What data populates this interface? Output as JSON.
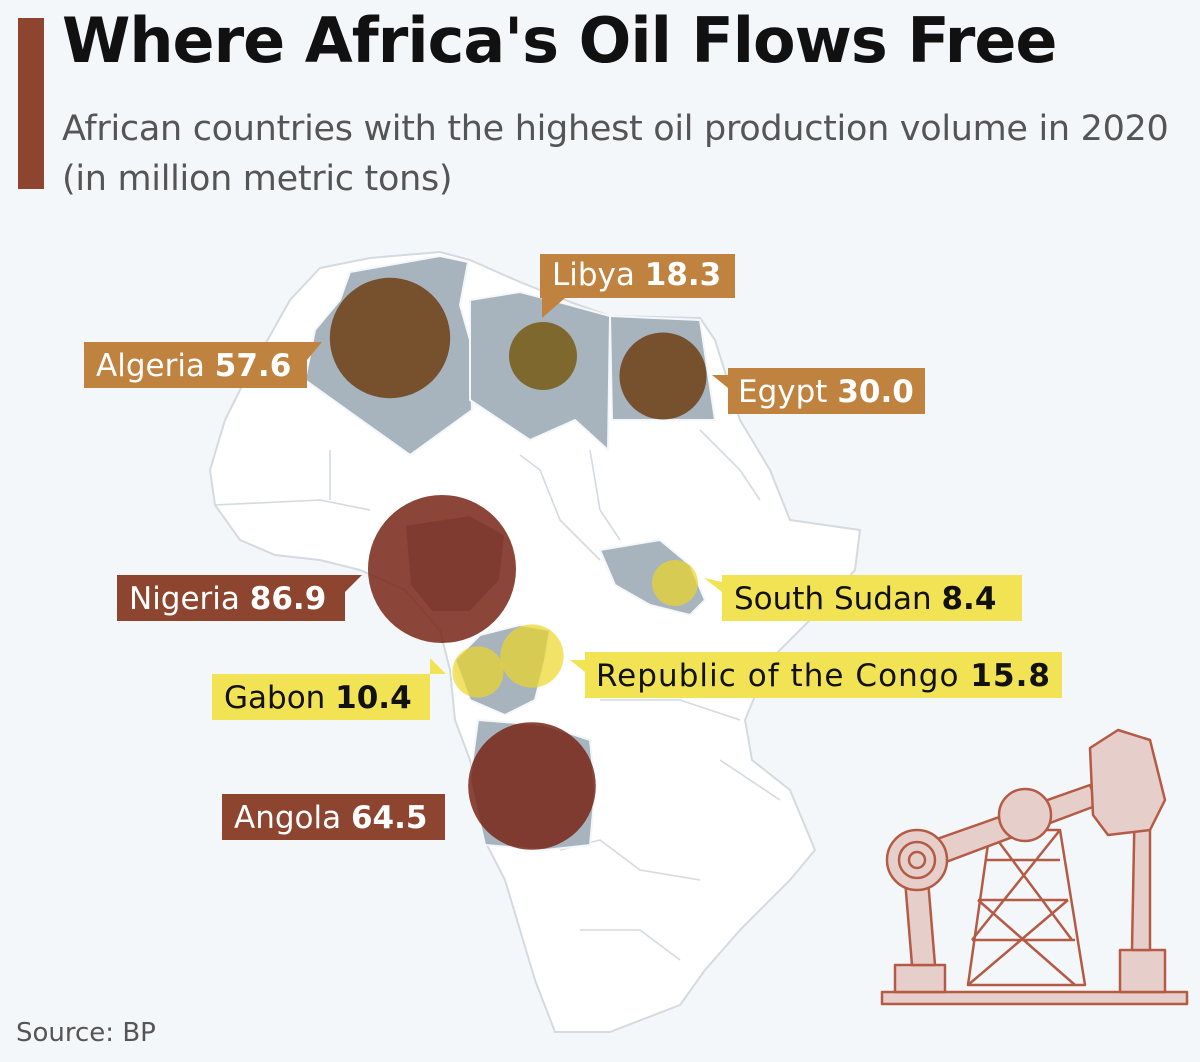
{
  "header": {
    "title": "Where Africa's Oil Flows Free",
    "subtitle": "African countries with the highest oil production volume in 2020 (in million metric tons)"
  },
  "footer": {
    "source": "Source: BP"
  },
  "colors": {
    "accent": "#8d4530",
    "land": "#ffffff",
    "highlight_land": "#a7b3bd",
    "high": "#8d4530",
    "mid": "#c0823f",
    "low": "#f2e354",
    "background": "#f4f7fa"
  },
  "chart_data": {
    "type": "bubble-map",
    "title": "Where Africa's Oil Flows Free",
    "subtitle": "African countries with the highest oil production volume in 2020 (in million metric tons)",
    "unit": "million metric tons",
    "year": 2020,
    "source": "BP",
    "series": [
      {
        "name": "Algeria",
        "value": 57.6,
        "label": "57.6",
        "tier": "mid"
      },
      {
        "name": "Libya",
        "value": 18.3,
        "label": "18.3",
        "tier": "mid"
      },
      {
        "name": "Egypt",
        "value": 30.0,
        "label": "30.0",
        "tier": "mid"
      },
      {
        "name": "Nigeria",
        "value": 86.9,
        "label": "86.9",
        "tier": "high"
      },
      {
        "name": "South Sudan",
        "value": 8.4,
        "label": "8.4",
        "tier": "low"
      },
      {
        "name": "Republic of the Congo",
        "value": 15.8,
        "label": "15.8",
        "tier": "low"
      },
      {
        "name": "Gabon",
        "value": 10.4,
        "label": "10.4",
        "tier": "low"
      },
      {
        "name": "Angola",
        "value": 64.5,
        "label": "64.5",
        "tier": "high"
      }
    ]
  }
}
